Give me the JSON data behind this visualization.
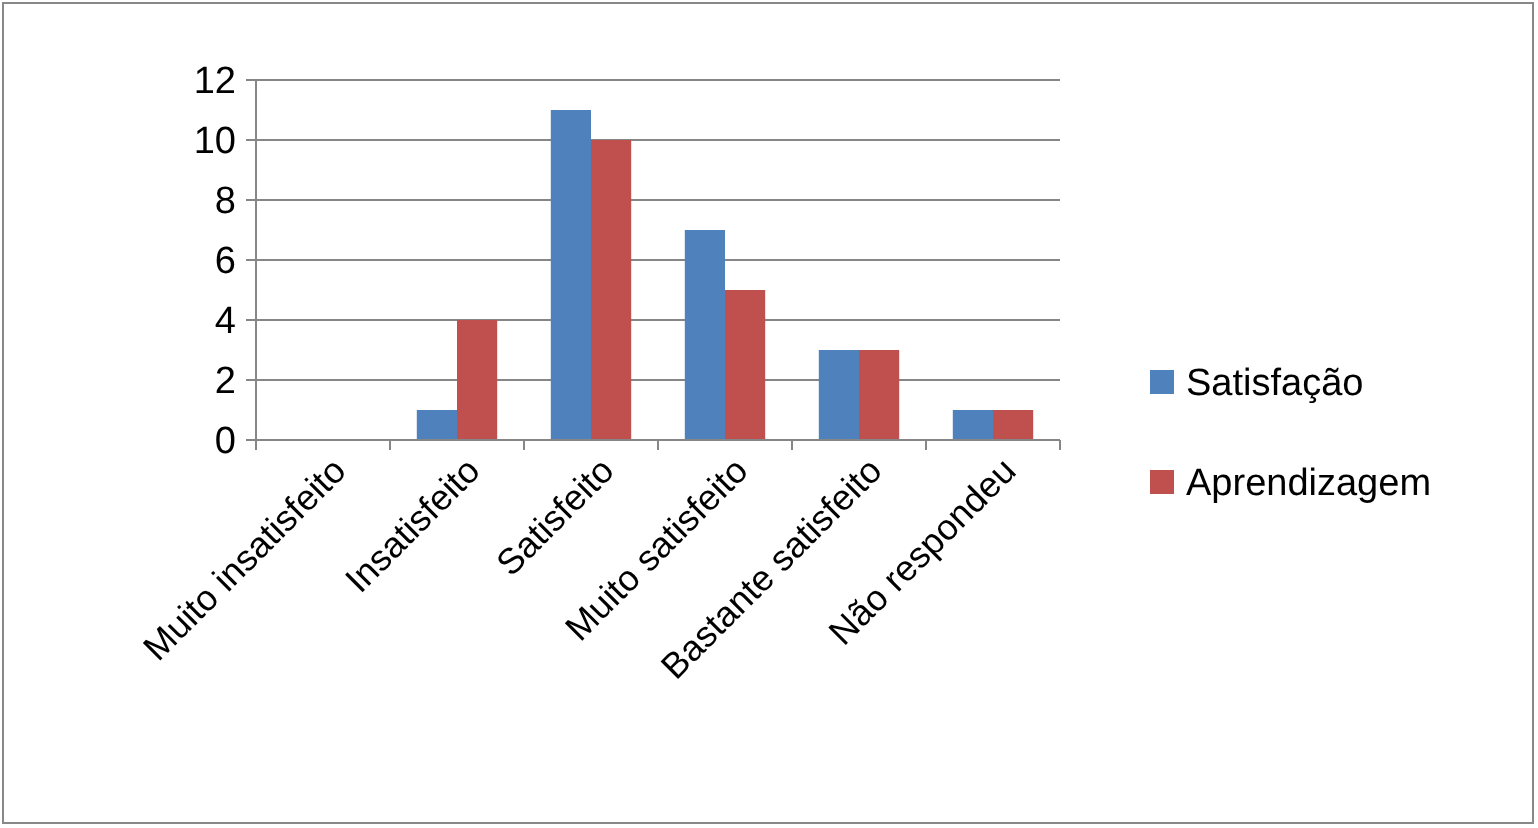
{
  "chart_data": {
    "type": "bar",
    "categories": [
      "Muito insatisfeito",
      "Insatisfeito",
      "Satisfeito",
      "Muito satisfeito",
      "Bastante satisfeito",
      "Não respondeu"
    ],
    "series": [
      {
        "name": "Satisfação",
        "color": "#4f81bd",
        "values": [
          0,
          1,
          11,
          7,
          3,
          1
        ]
      },
      {
        "name": "Aprendizagem",
        "color": "#c0504d",
        "values": [
          0,
          4,
          10,
          5,
          3,
          1
        ]
      }
    ],
    "ylim": [
      0,
      12
    ],
    "yticks": [
      0,
      2,
      4,
      6,
      8,
      10,
      12
    ],
    "grid": "y",
    "legend": "right"
  }
}
